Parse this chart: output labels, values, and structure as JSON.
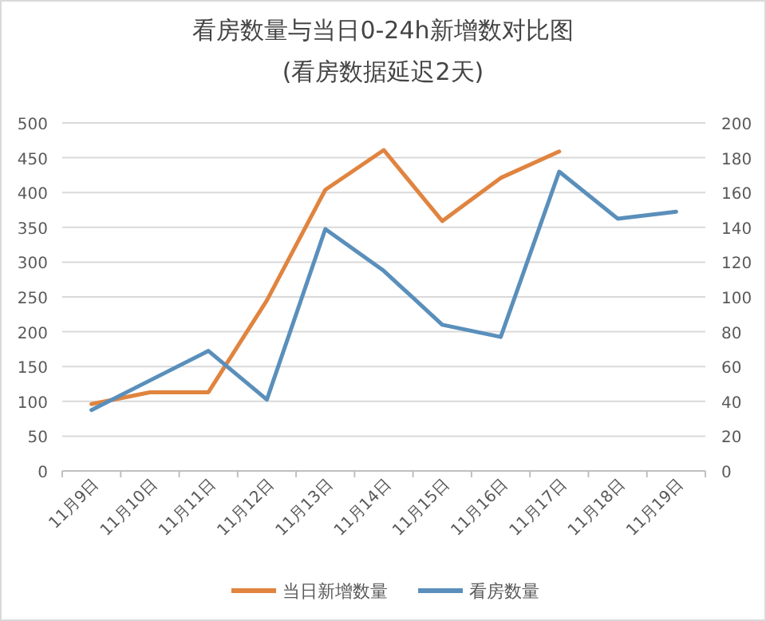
{
  "chart_data": {
    "type": "line",
    "title": "看房数量与当日0-24h新增数对比图",
    "subtitle": "(看房数据延迟2天)",
    "categories": [
      "11月9日",
      "11月10日",
      "11月11日",
      "11月12日",
      "11月13日",
      "11月14日",
      "11月15日",
      "11月16日",
      "11月17日",
      "11月18日",
      "11月19日"
    ],
    "series": [
      {
        "name": "当日新增数量",
        "color": "#e0843f",
        "values": [
          96,
          113,
          113,
          245,
          404,
          461,
          359,
          421,
          459,
          null,
          null
        ]
      },
      {
        "name": "看房数量",
        "color": "#5a8fbb",
        "axis": "y2",
        "values": [
          35,
          52,
          69,
          41,
          139,
          115,
          84,
          77,
          172,
          145,
          149
        ]
      }
    ],
    "ylim": [
      0,
      500
    ],
    "yticks": [
      0,
      50,
      100,
      150,
      200,
      250,
      300,
      350,
      400,
      450,
      500
    ],
    "y2lim": [
      0,
      200
    ],
    "y2ticks": [
      0,
      20,
      40,
      60,
      80,
      100,
      120,
      140,
      160,
      180,
      200
    ],
    "grid": "y",
    "legend": "bottom",
    "line_style": "solid",
    "marker": "none"
  }
}
